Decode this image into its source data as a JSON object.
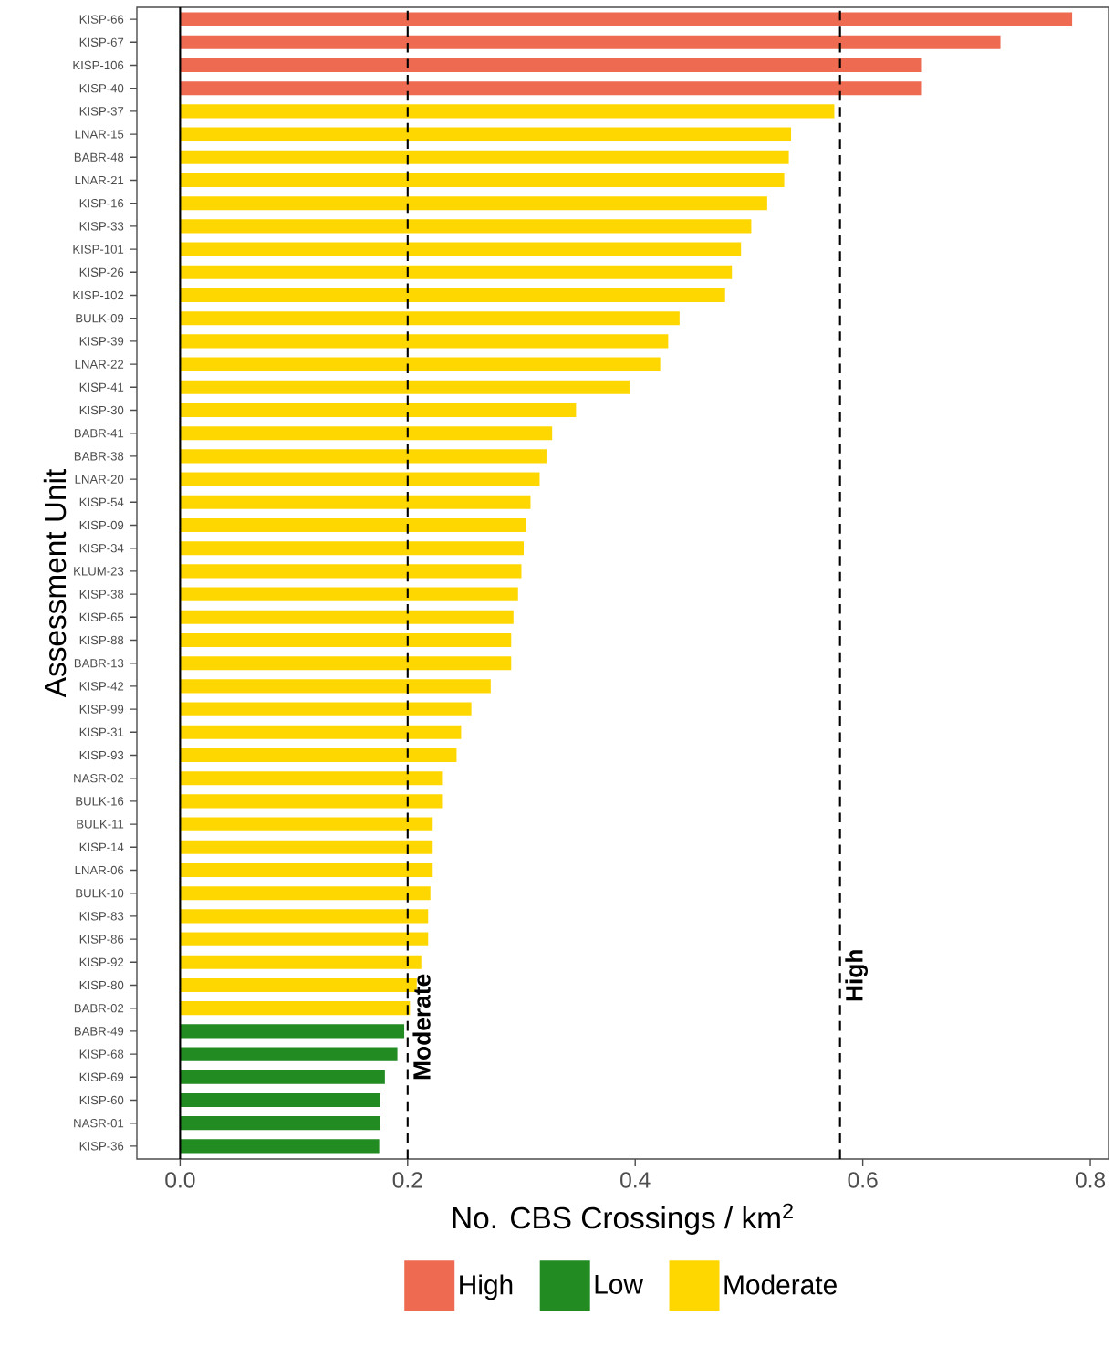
{
  "chart_data": {
    "type": "bar",
    "orientation": "horizontal",
    "xlabel": "No. CBS Crossings / km$^{2}$",
    "ylabel": "Assessment Unit",
    "categories": [
      "KISP-66",
      "KISP-67",
      "KISP-106",
      "KISP-40",
      "KISP-37",
      "LNAR-15",
      "BABR-48",
      "LNAR-21",
      "KISP-16",
      "KISP-33",
      "KISP-101",
      "KISP-26",
      "KISP-102",
      "BULK-09",
      "KISP-39",
      "LNAR-22",
      "KISP-41",
      "KISP-30",
      "BABR-41",
      "BABR-38",
      "LNAR-20",
      "KISP-54",
      "KISP-09",
      "KISP-34",
      "KLUM-23",
      "KISP-38",
      "KISP-65",
      "KISP-88",
      "BABR-13",
      "KISP-42",
      "KISP-99",
      "KISP-31",
      "KISP-93",
      "NASR-02",
      "BULK-16",
      "BULK-11",
      "KISP-14",
      "LNAR-06",
      "BULK-10",
      "KISP-83",
      "KISP-86",
      "KISP-92",
      "KISP-80",
      "BABR-02",
      "BABR-49",
      "KISP-68",
      "KISP-69",
      "KISP-60",
      "NASR-01",
      "KISP-36"
    ],
    "series": [
      {
        "name": "High",
        "color": "#ee6a50",
        "values": [
          0.784,
          0.721,
          0.652,
          0.652,
          null,
          null,
          null,
          null,
          null,
          null,
          null,
          null,
          null,
          null,
          null,
          null,
          null,
          null,
          null,
          null,
          null,
          null,
          null,
          null,
          null,
          null,
          null,
          null,
          null,
          null,
          null,
          null,
          null,
          null,
          null,
          null,
          null,
          null,
          null,
          null,
          null,
          null,
          null,
          null,
          null,
          null,
          null,
          null,
          null,
          null
        ]
      },
      {
        "name": "Low",
        "color": "#228b22",
        "values": [
          null,
          null,
          null,
          null,
          null,
          null,
          null,
          null,
          null,
          null,
          null,
          null,
          null,
          null,
          null,
          null,
          null,
          null,
          null,
          null,
          null,
          null,
          null,
          null,
          null,
          null,
          null,
          null,
          null,
          null,
          null,
          null,
          null,
          null,
          null,
          null,
          null,
          null,
          null,
          null,
          null,
          null,
          null,
          null,
          0.197,
          0.191,
          0.18,
          0.176,
          0.176,
          0.175
        ]
      },
      {
        "name": "Moderate",
        "color": "#ffd700",
        "values": [
          null,
          null,
          null,
          null,
          0.575,
          0.537,
          0.535,
          0.531,
          0.516,
          0.502,
          0.493,
          0.485,
          0.479,
          0.439,
          0.429,
          0.422,
          0.395,
          0.348,
          0.327,
          0.322,
          0.316,
          0.308,
          0.304,
          0.302,
          0.3,
          0.297,
          0.293,
          0.291,
          0.291,
          0.273,
          0.256,
          0.247,
          0.243,
          0.231,
          0.231,
          0.222,
          0.222,
          0.222,
          0.22,
          0.218,
          0.218,
          0.212,
          0.208,
          0.202,
          null,
          null,
          null,
          null,
          null,
          null
        ]
      }
    ],
    "xlim": [
      -0.038,
      0.816
    ],
    "xticks": [
      {
        "value": 0,
        "label": "0.0"
      },
      {
        "value": 0.2,
        "label": "0.2"
      },
      {
        "value": 0.4,
        "label": "0.4"
      },
      {
        "value": 0.6,
        "label": "0.6"
      },
      {
        "value": 0.8,
        "label": "0.8"
      }
    ],
    "ref_lines": [
      {
        "axis": "x",
        "value": 0,
        "line_style": "solid",
        "color": "#000000"
      },
      {
        "axis": "x",
        "value": 0.2,
        "label": "Moderate",
        "line_style": "dashed",
        "color": "#000000"
      },
      {
        "axis": "x",
        "value": 0.58,
        "label": "High",
        "line_style": "dashed",
        "color": "#000000"
      }
    ],
    "legend": "bottom"
  }
}
